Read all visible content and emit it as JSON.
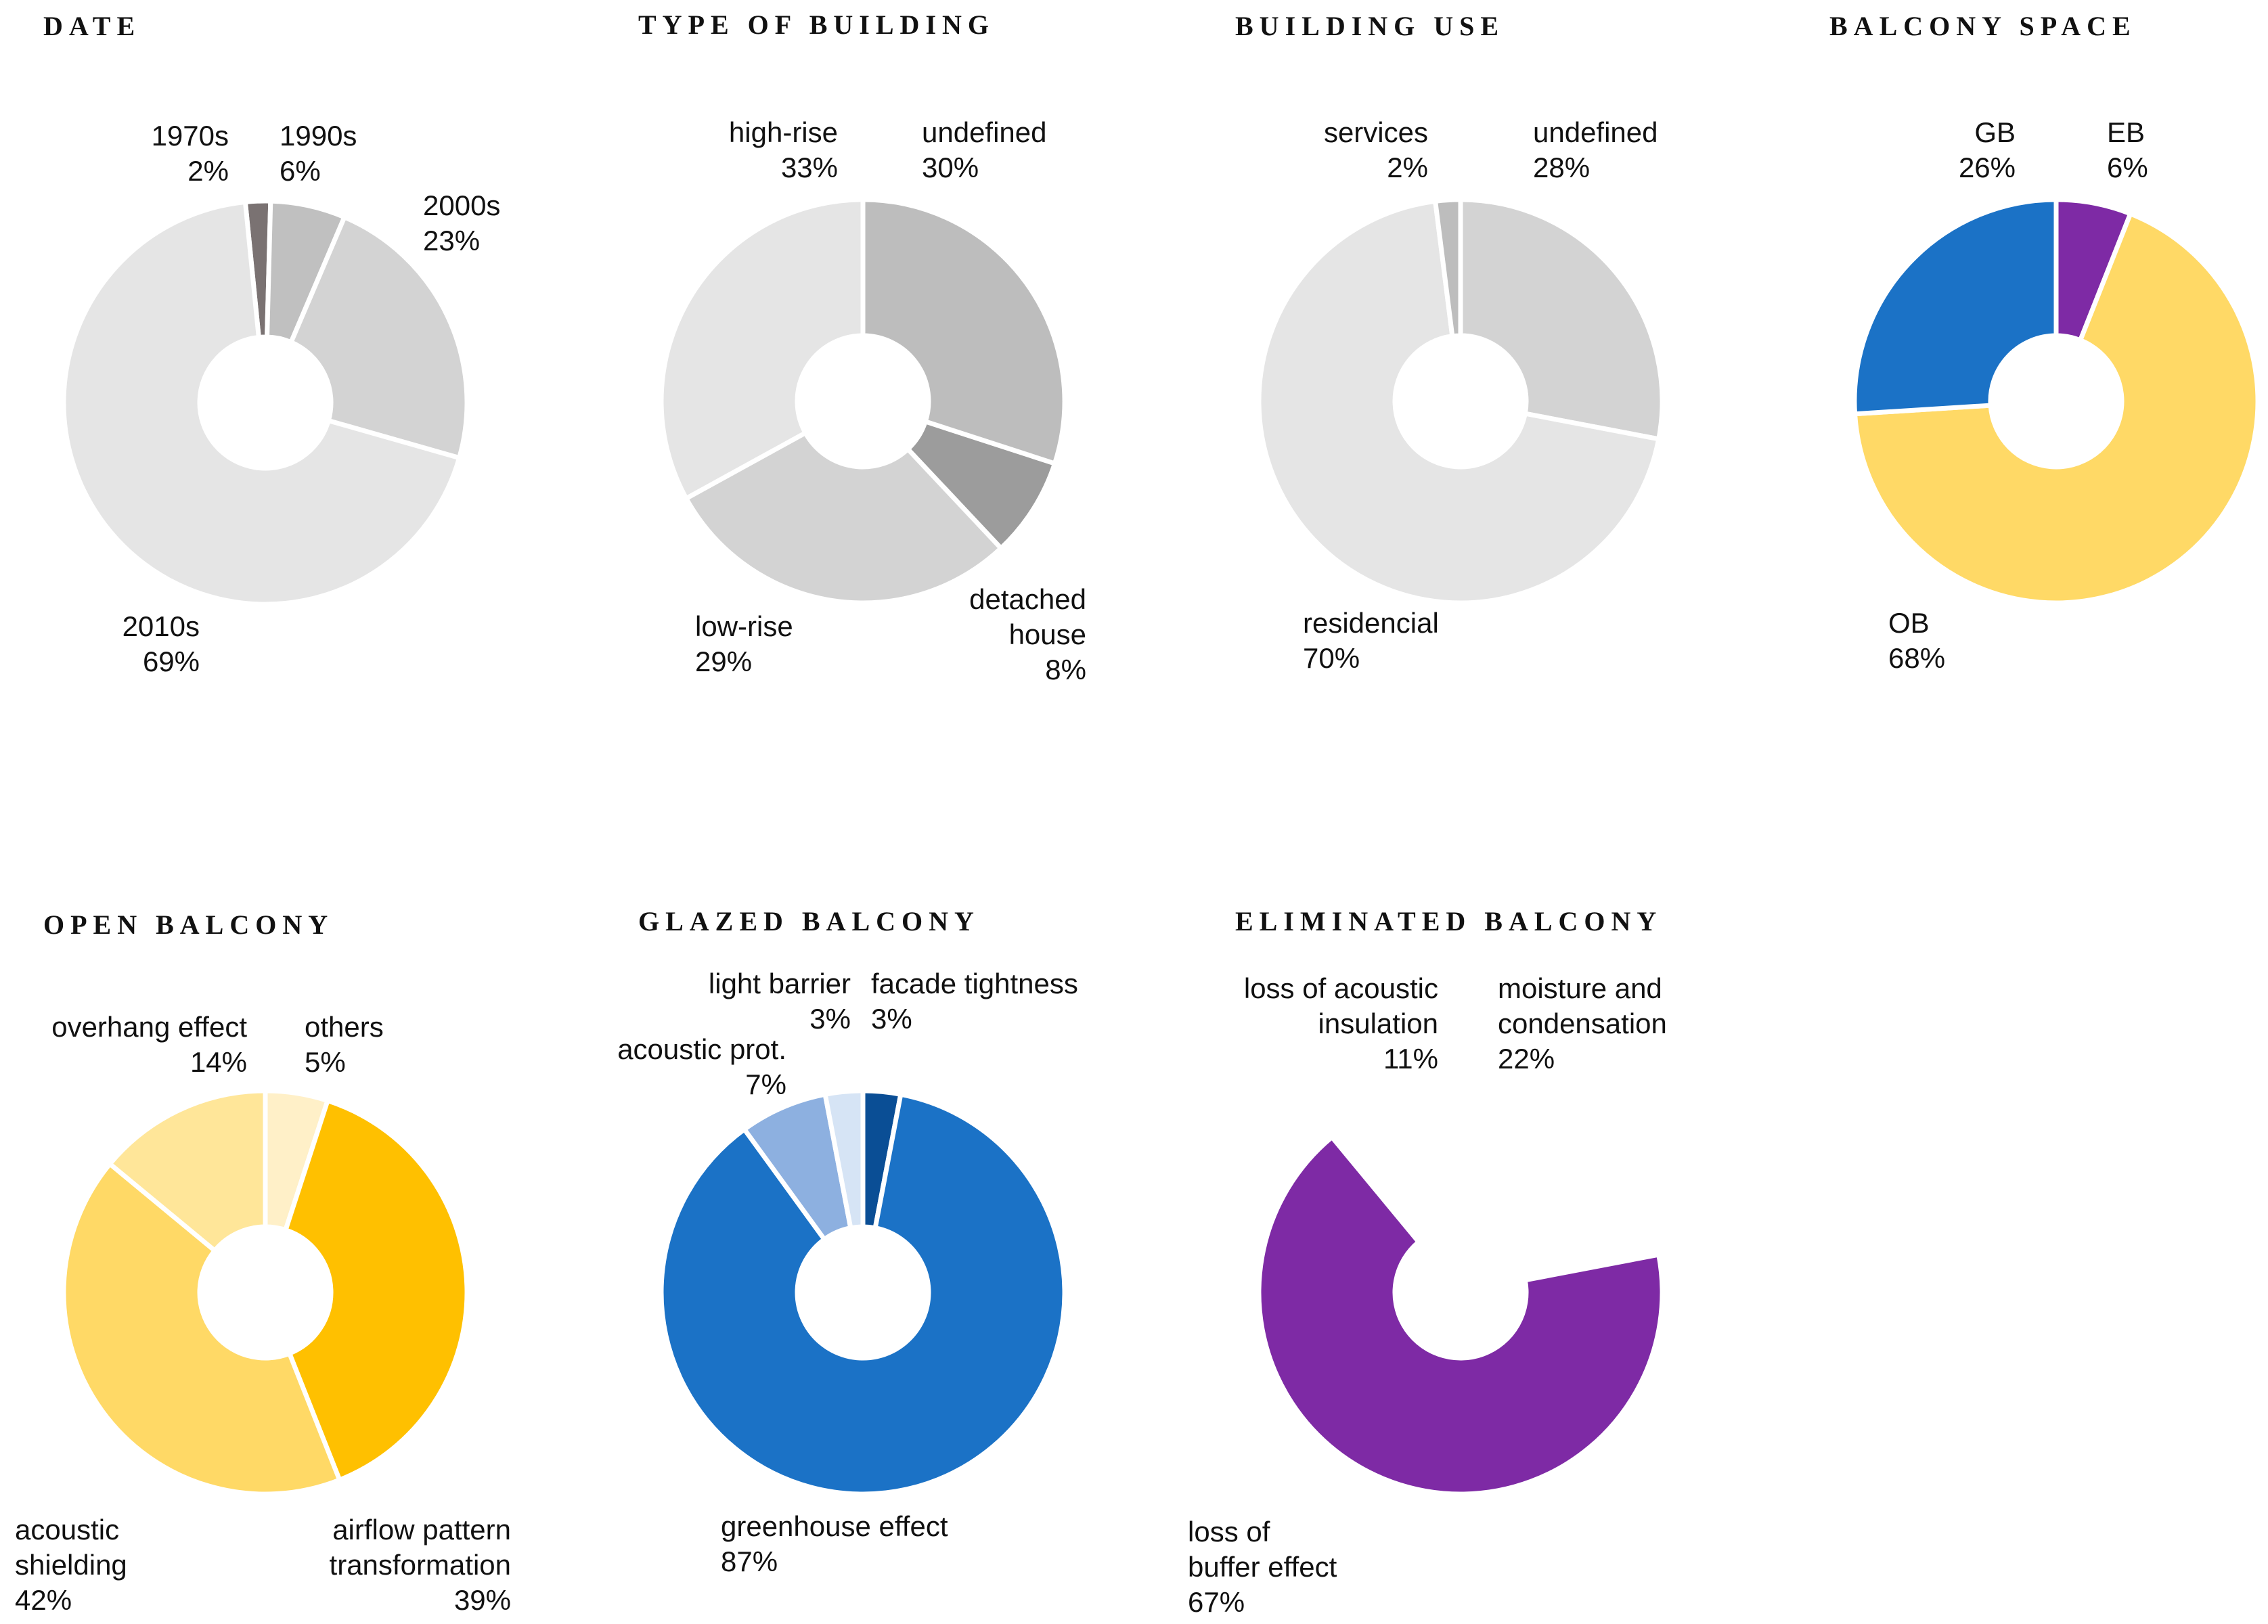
{
  "chart_data": [
    {
      "type": "pie",
      "title": "DATE",
      "slices": [
        {
          "label": [
            "1970s"
          ],
          "value": 2,
          "value_label": "2%",
          "color": "#7a7272"
        },
        {
          "label": [
            "1990s"
          ],
          "value": 6,
          "value_label": "6%",
          "color": "#c0c0c0"
        },
        {
          "label": [
            "2000s"
          ],
          "value": 23,
          "value_label": "23%",
          "color": "#d3d3d3"
        },
        {
          "label": [
            "2010s"
          ],
          "value": 69,
          "value_label": "69%",
          "color": "#e5e5e5"
        }
      ]
    },
    {
      "type": "pie",
      "title": "TYPE OF BUILDING",
      "slices": [
        {
          "label": [
            "undefined"
          ],
          "value": 30,
          "value_label": "30%",
          "color": "#bdbdbd"
        },
        {
          "label": [
            "detached",
            "house"
          ],
          "value": 8,
          "value_label": "8%",
          "color": "#9c9c9c"
        },
        {
          "label": [
            "low-rise"
          ],
          "value": 29,
          "value_label": "29%",
          "color": "#d3d3d3"
        },
        {
          "label": [
            "high-rise"
          ],
          "value": 33,
          "value_label": "33%",
          "color": "#e5e5e5"
        }
      ]
    },
    {
      "type": "pie",
      "title": "BUILDING USE",
      "slices": [
        {
          "label": [
            "undefined"
          ],
          "value": 28,
          "value_label": "28%",
          "color": "#d3d3d3"
        },
        {
          "label": [
            "residencial"
          ],
          "value": 70,
          "value_label": "70%",
          "color": "#e5e5e5"
        },
        {
          "label": [
            "services"
          ],
          "value": 2,
          "value_label": "2%",
          "color": "#bdbdbd"
        }
      ]
    },
    {
      "type": "pie",
      "title": "BALCONY SPACE",
      "slices": [
        {
          "label": [
            "EB"
          ],
          "value": 6,
          "value_label": "6%",
          "color": "#7e2aa5"
        },
        {
          "label": [
            "OB"
          ],
          "value": 68,
          "value_label": "68%",
          "color": "#ffd966"
        },
        {
          "label": [
            "GB"
          ],
          "value": 26,
          "value_label": "26%",
          "color": "#1b72c6"
        }
      ]
    },
    {
      "type": "pie",
      "title": "OPEN BALCONY",
      "slices": [
        {
          "label": [
            "others"
          ],
          "value": 5,
          "value_label": "5%",
          "color": "#fff0c8"
        },
        {
          "label": [
            "airflow pattern",
            "transformation"
          ],
          "value": 39,
          "value_label": "39%",
          "color": "#ffc000"
        },
        {
          "label": [
            "acoustic",
            "shielding"
          ],
          "value": 42,
          "value_label": "42%",
          "color": "#ffd966"
        },
        {
          "label": [
            "overhang effect"
          ],
          "value": 14,
          "value_label": "14%",
          "color": "#ffe699"
        }
      ]
    },
    {
      "type": "pie",
      "title": "GLAZED BALCONY",
      "slices": [
        {
          "label": [
            "facade tightness"
          ],
          "value": 3,
          "value_label": "3%",
          "color": "#0a4e95"
        },
        {
          "label": [
            "greenhouse effect"
          ],
          "value": 87,
          "value_label": "87%",
          "color": "#1b72c6"
        },
        {
          "label": [
            "acoustic prot."
          ],
          "value": 7,
          "value_label": "7%",
          "color": "#8db0e0"
        },
        {
          "label": [
            "light barrier"
          ],
          "value": 3,
          "value_label": "3%",
          "color": "#d6e4f5"
        }
      ]
    },
    {
      "type": "pie",
      "title": "ELIMINATED BALCONY",
      "slices": [
        {
          "label": [
            "moisture and",
            "condensation"
          ],
          "value": 22,
          "value_label": "22%",
          "color": "#ffffff"
        },
        {
          "label": [
            "loss of",
            "buffer effect"
          ],
          "value": 67,
          "value_label": "67%",
          "color": "#7e2aa5"
        },
        {
          "label": [
            "loss of acoustic",
            "insulation"
          ],
          "value": 11,
          "value_label": "11%",
          "color": "#ffffff"
        }
      ]
    }
  ]
}
